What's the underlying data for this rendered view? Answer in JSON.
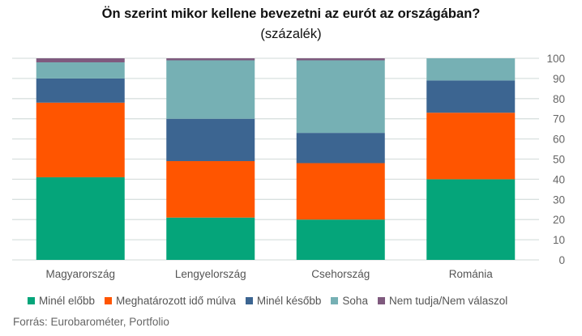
{
  "chart_data": {
    "type": "bar",
    "stacked": true,
    "title": "Ön szerint mikor kellene bevezetni az eurót az országában?",
    "subtitle": "(százalék)",
    "categories": [
      "Magyarország",
      "Lengyelország",
      "Csehország",
      "Románia"
    ],
    "series": [
      {
        "name": "Minél előbb",
        "color": "#05a57a",
        "values": [
          41,
          21,
          20,
          40
        ]
      },
      {
        "name": "Meghatározott idő múlva",
        "color": "#ff5500",
        "values": [
          37,
          28,
          28,
          33
        ]
      },
      {
        "name": "Minél később",
        "color": "#3c6591",
        "values": [
          12,
          21,
          15,
          16
        ]
      },
      {
        "name": "Soha",
        "color": "#76b0b4",
        "values": [
          8,
          29,
          36,
          11
        ]
      },
      {
        "name": "Nem tudja/Nem válaszol",
        "color": "#7f5a7e",
        "values": [
          2,
          1,
          1,
          0
        ]
      }
    ],
    "ylim": [
      0,
      100
    ],
    "yticks": [
      "0",
      "10",
      "20",
      "30",
      "40",
      "50",
      "60",
      "70",
      "80",
      "90",
      "100"
    ],
    "y_axis_side": "right",
    "grid": true,
    "legend": "bottom"
  },
  "source": "Forrás: Eurobarométer, Portfolio"
}
